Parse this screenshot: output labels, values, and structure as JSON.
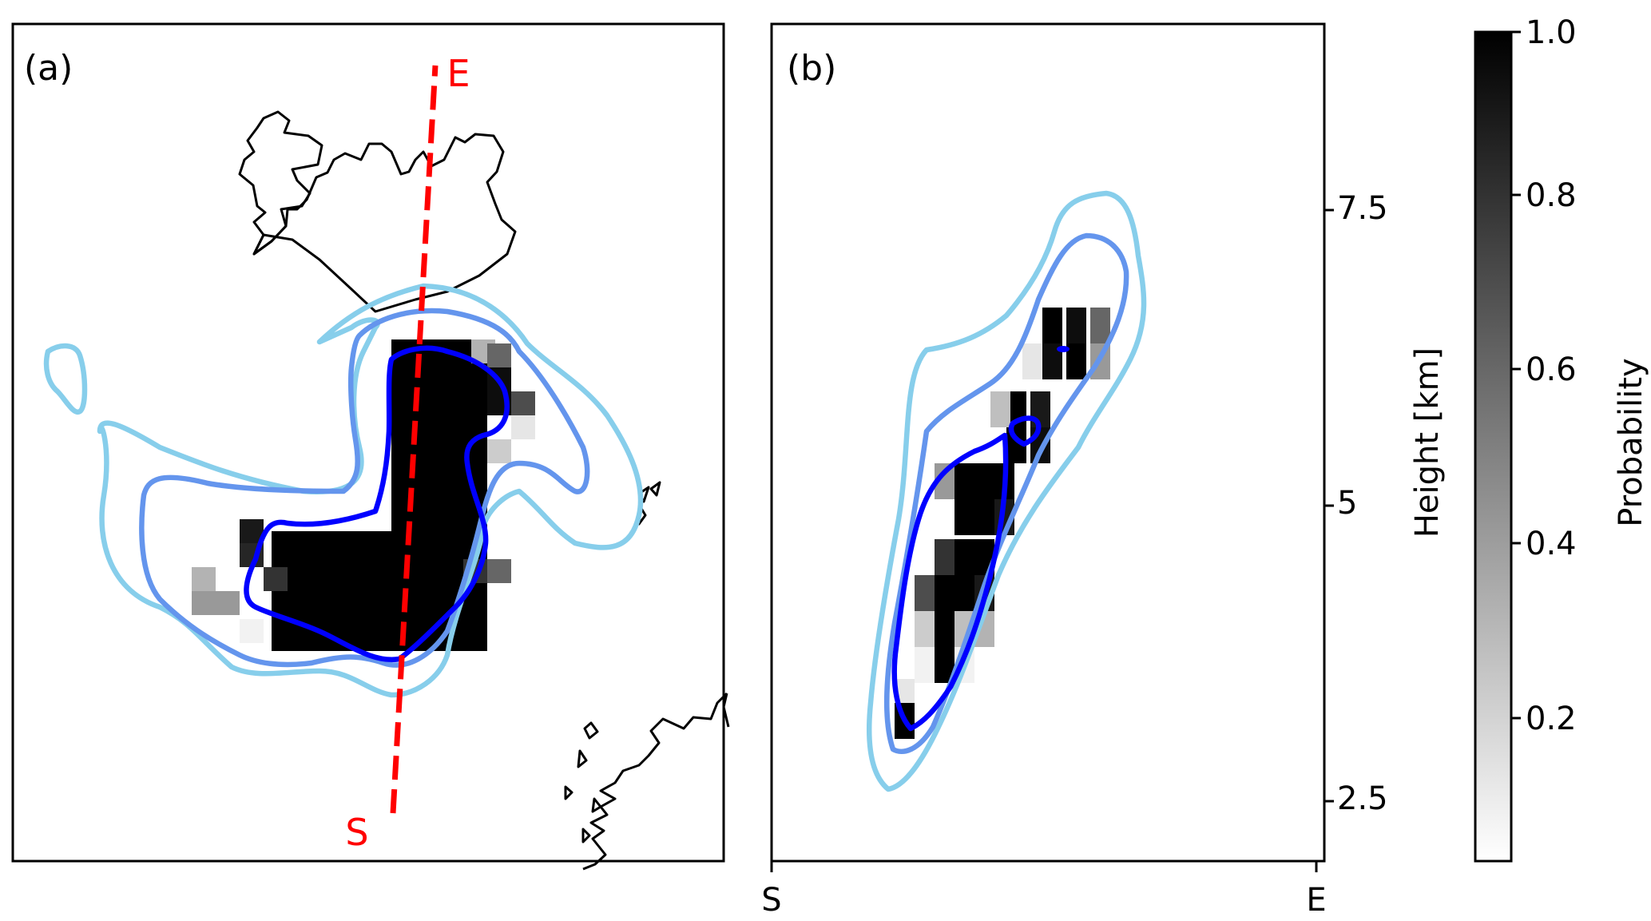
{
  "chart_data": [
    {
      "type": "heatmap",
      "panel_label": "(a)",
      "transect": {
        "start_label": "S",
        "end_label": "E",
        "color": "#ff0000"
      },
      "contour_colors": [
        "#87ceeb",
        "#6495ed",
        "#0000ff"
      ],
      "colormap": "Greys",
      "coastlines": true,
      "grid": false
    },
    {
      "type": "heatmap",
      "panel_label": "(b)",
      "x_ticks": [
        "S",
        "E"
      ],
      "y_ticks": [
        "2.5",
        "5",
        "7.5"
      ],
      "y_tick_values": [
        2.5,
        5,
        7.5
      ],
      "ylim": [
        2.2,
        9.2
      ],
      "ylabel": "Height [km]",
      "y_axis_side": "right",
      "contour_colors": [
        "#87ceeb",
        "#6495ed",
        "#0000ff"
      ],
      "colormap": "Greys",
      "grid": false
    }
  ],
  "colorbar": {
    "label": "Probability",
    "ticks": [
      "0.2",
      "0.4",
      "0.6",
      "0.8",
      "1.0"
    ],
    "tick_values": [
      0.2,
      0.4,
      0.6,
      0.8,
      1.0
    ],
    "range": [
      0.05,
      1.0
    ],
    "colormap": "Greys"
  }
}
